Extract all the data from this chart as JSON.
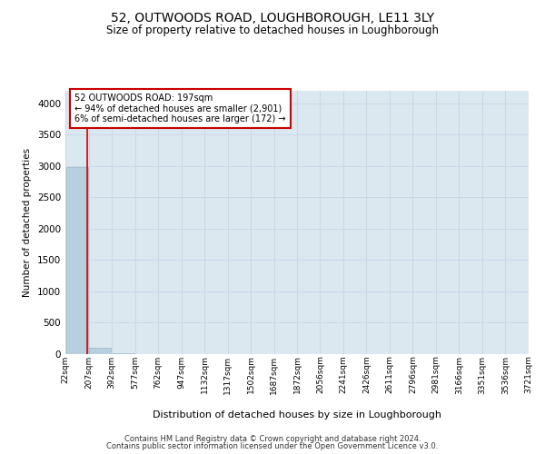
{
  "title": "52, OUTWOODS ROAD, LOUGHBOROUGH, LE11 3LY",
  "subtitle": "Size of property relative to detached houses in Loughborough",
  "xlabel": "Distribution of detached houses by size in Loughborough",
  "ylabel": "Number of detached properties",
  "bin_edges": [
    22,
    207,
    392,
    577,
    762,
    947,
    1132,
    1317,
    1502,
    1687,
    1872,
    2056,
    2241,
    2426,
    2611,
    2796,
    2981,
    3166,
    3351,
    3536,
    3721
  ],
  "bin_labels": [
    "22sqm",
    "207sqm",
    "392sqm",
    "577sqm",
    "762sqm",
    "947sqm",
    "1132sqm",
    "1317sqm",
    "1502sqm",
    "1687sqm",
    "1872sqm",
    "2056sqm",
    "2241sqm",
    "2426sqm",
    "2611sqm",
    "2796sqm",
    "2981sqm",
    "3166sqm",
    "3351sqm",
    "3536sqm",
    "3721sqm"
  ],
  "bar_heights": [
    2990,
    100,
    8,
    3,
    2,
    1,
    0,
    0,
    0,
    0,
    1,
    0,
    0,
    0,
    0,
    0,
    0,
    0,
    0,
    0
  ],
  "bar_color": "#b8cfdf",
  "bar_edge_color": "#9ab8cc",
  "highlight_color": "#cc0000",
  "property_size": 197,
  "property_label": "52 OUTWOODS ROAD: 197sqm",
  "smaller_pct": 94,
  "smaller_count": 2901,
  "larger_pct": 6,
  "larger_count": 172,
  "annotation_box_color": "#cc0000",
  "ylim": [
    0,
    4200
  ],
  "yticks": [
    0,
    500,
    1000,
    1500,
    2000,
    2500,
    3000,
    3500,
    4000
  ],
  "grid_color": "#c8d8e8",
  "bg_color": "#dce8f0",
  "footer_line1": "Contains HM Land Registry data © Crown copyright and database right 2024.",
  "footer_line2": "Contains public sector information licensed under the Open Government Licence v3.0."
}
